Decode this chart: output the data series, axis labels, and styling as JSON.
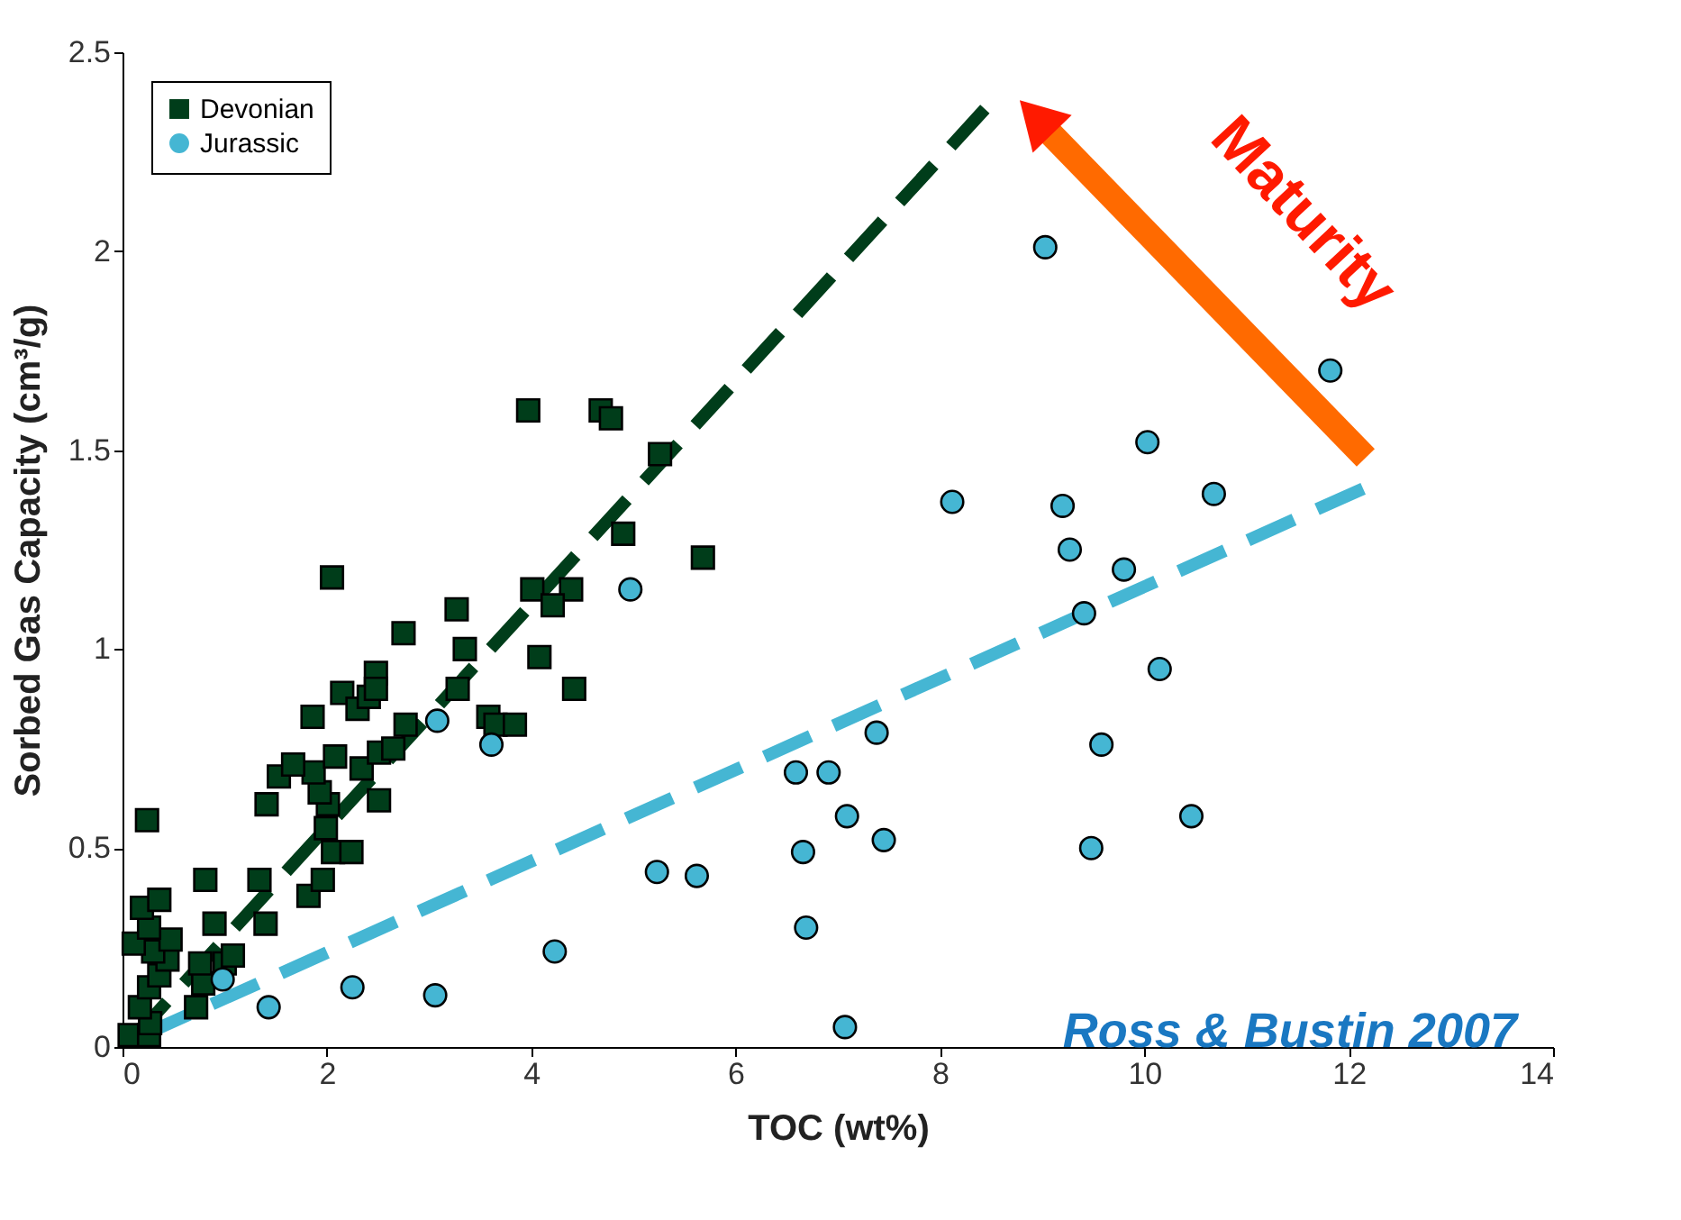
{
  "chart_data": {
    "type": "scatter",
    "xlabel": "TOC (wt%)",
    "ylabel": "Sorbed Gas Capacity (cm³/g)",
    "xlim": [
      0,
      14
    ],
    "ylim": [
      0,
      2.5
    ],
    "xticks": [
      0,
      2,
      4,
      6,
      8,
      10,
      12,
      14
    ],
    "yticks": [
      0,
      0.5,
      1,
      1.5,
      2,
      2.5
    ],
    "grid": false,
    "legend": "top left",
    "annotations": [
      "Maturity",
      "Ross & Bustin 2007"
    ],
    "series": [
      {
        "name": "Devonian",
        "color": "#003d1a",
        "marker": "square",
        "x": [
          0.07,
          0.26,
          0.27,
          0.17,
          0.26,
          0.36,
          0.44,
          0.3,
          0.47,
          0.11,
          0.26,
          0.19,
          0.36,
          0.24,
          0.72,
          0.79,
          0.76,
          1.0,
          1.08,
          0.9,
          0.81,
          1.4,
          1.34,
          1.82,
          1.96,
          2.06,
          2.24,
          1.99,
          2.01,
          2.51,
          1.93,
          1.87,
          1.41,
          1.53,
          1.67,
          2.08,
          2.34,
          2.51,
          2.65,
          2.77,
          1.86,
          2.15,
          2.3,
          2.41,
          2.48,
          2.48,
          2.75,
          2.05,
          3.97,
          4.68,
          4.78,
          5.26,
          4.9,
          5.68,
          4.01,
          4.39,
          4.21,
          3.27,
          3.35,
          4.08,
          4.42,
          3.28,
          3.58,
          3.65,
          3.84
        ],
        "values": [
          0.03,
          0.03,
          0.06,
          0.1,
          0.15,
          0.18,
          0.22,
          0.24,
          0.27,
          0.26,
          0.3,
          0.35,
          0.37,
          0.57,
          0.1,
          0.16,
          0.21,
          0.21,
          0.23,
          0.31,
          0.42,
          0.31,
          0.42,
          0.38,
          0.42,
          0.49,
          0.49,
          0.55,
          0.61,
          0.62,
          0.64,
          0.69,
          0.61,
          0.68,
          0.71,
          0.73,
          0.7,
          0.74,
          0.75,
          0.81,
          0.83,
          0.89,
          0.85,
          0.88,
          0.94,
          0.9,
          1.04,
          1.18,
          1.6,
          1.6,
          1.58,
          1.49,
          1.29,
          1.23,
          1.15,
          1.15,
          1.11,
          1.1,
          1.0,
          0.98,
          0.9,
          0.9,
          0.83,
          0.81,
          0.81
        ]
      },
      {
        "name": "Jurassic",
        "color": "#45b6d3",
        "marker": "circle",
        "x": [
          0.98,
          1.43,
          2.25,
          3.06,
          3.08,
          3.61,
          4.97,
          4.23,
          5.23,
          5.62,
          6.59,
          6.91,
          7.38,
          7.09,
          7.45,
          6.66,
          6.69,
          7.07,
          9.03,
          11.82,
          10.03,
          8.12,
          9.2,
          10.68,
          9.27,
          9.8,
          9.41,
          10.15,
          9.58,
          10.46,
          9.48
        ],
        "values": [
          0.17,
          0.1,
          0.15,
          0.13,
          0.82,
          0.76,
          1.15,
          0.24,
          0.44,
          0.43,
          0.69,
          0.69,
          0.79,
          0.58,
          0.52,
          0.49,
          0.3,
          0.05,
          2.01,
          1.7,
          1.52,
          1.37,
          1.36,
          1.39,
          1.25,
          1.2,
          1.09,
          0.95,
          0.76,
          0.58,
          0.5
        ]
      },
      {
        "type": "line",
        "color": "#003d1a",
        "line_style": "dashed",
        "x": [
          0.1,
          8.45
        ],
        "values": [
          0.02,
          2.36
        ]
      },
      {
        "type": "line",
        "color": "#45b6d3",
        "line_style": "dashed",
        "x": [
          0.2,
          12.2
        ],
        "values": [
          0.03,
          1.41
        ]
      }
    ]
  }
}
